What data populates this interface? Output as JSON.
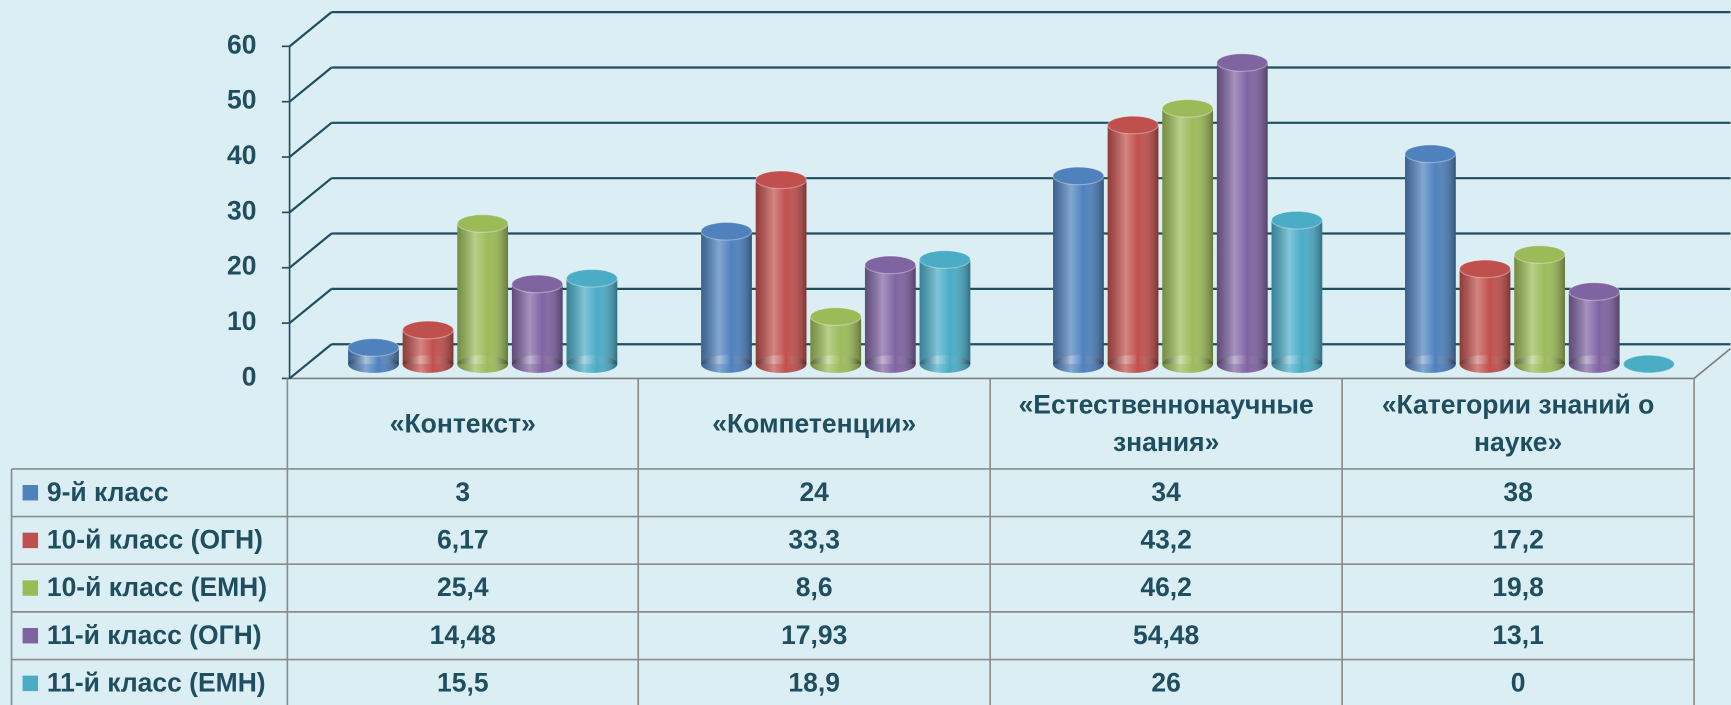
{
  "chart_data": {
    "type": "bar3d",
    "categories": [
      "«Контекст»",
      "«Компетенции»",
      "«Естественнонаучные знания»",
      "«Категории знаний о науке»"
    ],
    "series": [
      {
        "name": "9-й класс",
        "color": "#4f81bd",
        "values": [
          3,
          24,
          34,
          38
        ],
        "value_labels": [
          "3",
          "24",
          "34",
          "38"
        ]
      },
      {
        "name": "10-й класс (ОГН)",
        "color": "#c0504d",
        "values": [
          6.17,
          33.3,
          43.2,
          17.2
        ],
        "value_labels": [
          "6,17",
          "33,3",
          "43,2",
          "17,2"
        ]
      },
      {
        "name": "10-й класс (ЕМН)",
        "color": "#9bbb59",
        "values": [
          25.4,
          8.6,
          46.2,
          19.8
        ],
        "value_labels": [
          "25,4",
          "8,6",
          "46,2",
          "19,8"
        ]
      },
      {
        "name": "11-й класс (ОГН)",
        "color": "#8064a2",
        "values": [
          14.48,
          17.93,
          54.48,
          13.1
        ],
        "value_labels": [
          "14,48",
          "17,93",
          "54,48",
          "13,1"
        ]
      },
      {
        "name": "11-й класс (ЕМН)",
        "color": "#4bacc6",
        "values": [
          15.5,
          18.9,
          26,
          0
        ],
        "value_labels": [
          "15,5",
          "18,9",
          "26",
          "0"
        ]
      }
    ],
    "ylim": [
      0,
      60
    ],
    "yticks": [
      0,
      10,
      20,
      30,
      40,
      50,
      60
    ],
    "grid": true
  }
}
